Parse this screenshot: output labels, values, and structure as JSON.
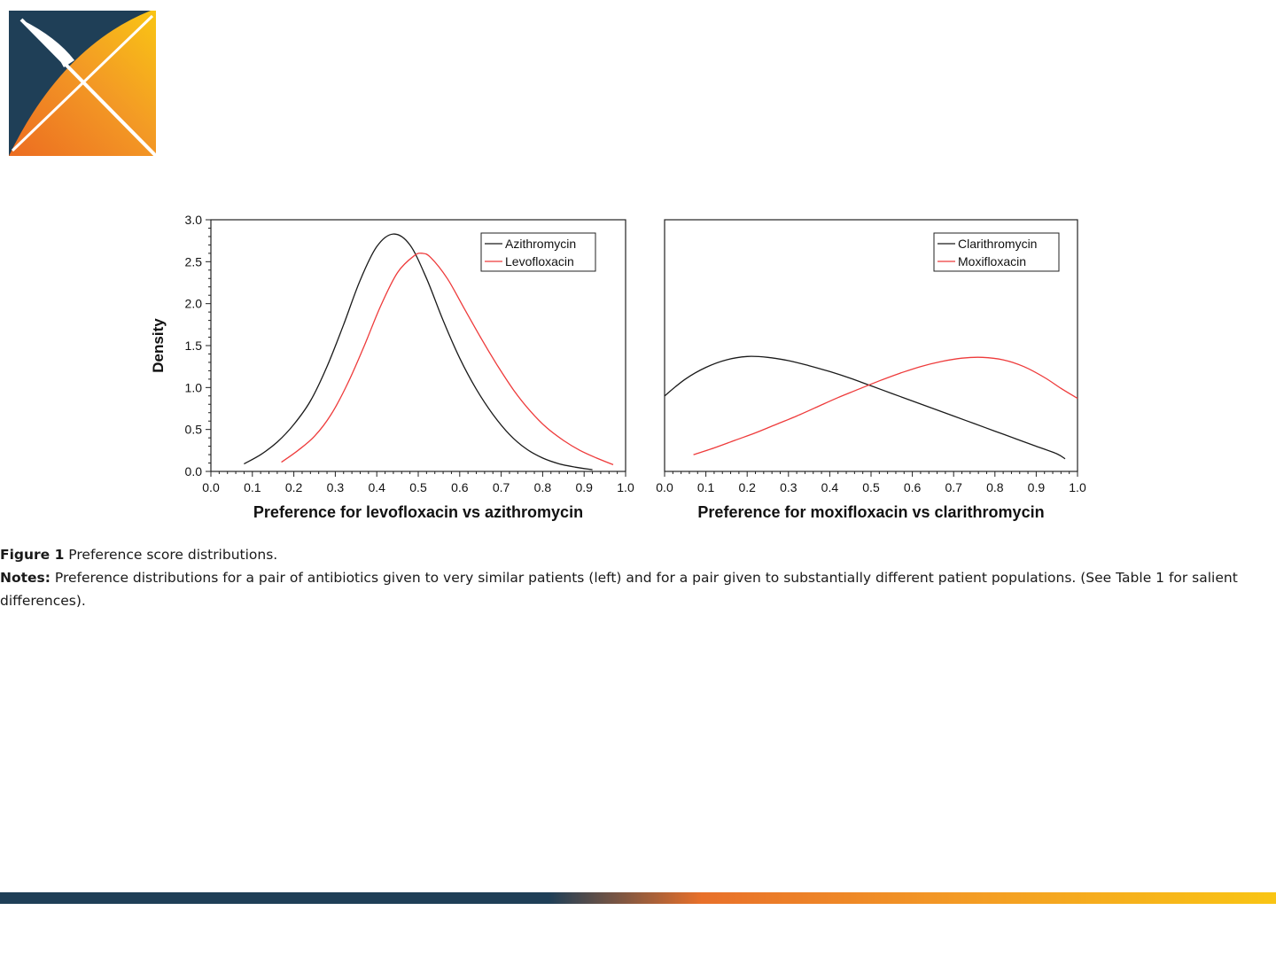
{
  "colors": {
    "navy": "#1f3f57",
    "orange": "#ee7d22",
    "yellow": "#f9c514",
    "series_black": "#1a1a1a",
    "series_red": "#ee3b3b"
  },
  "caption": {
    "figure_label": "Figure 1",
    "figure_text": " Preference score distributions.",
    "notes_label": "Notes:",
    "notes_text": " Preference distributions for a pair of antibiotics given to very similar patients (left) and for a pair given to substantially different patient populations. (See Table 1 for salient differences)."
  },
  "chart_data": [
    {
      "type": "line",
      "title": "",
      "xlabel": "Preference for levofloxacin vs azithromycin",
      "ylabel": "Density",
      "xlim": [
        0,
        1
      ],
      "ylim": [
        0,
        3
      ],
      "xticks": [
        "0.0",
        "0.1",
        "0.2",
        "0.3",
        "0.4",
        "0.5",
        "0.6",
        "0.7",
        "0.8",
        "0.9",
        "1.0"
      ],
      "yticks": [
        "0.0",
        "0.5",
        "1.0",
        "1.5",
        "2.0",
        "2.5",
        "3.0"
      ],
      "legend_position": "top-right",
      "series": [
        {
          "name": "Azithromycin",
          "color": "#1a1a1a",
          "x": [
            0.08,
            0.12,
            0.16,
            0.2,
            0.24,
            0.28,
            0.32,
            0.36,
            0.4,
            0.44,
            0.48,
            0.52,
            0.56,
            0.6,
            0.64,
            0.68,
            0.72,
            0.76,
            0.8,
            0.84,
            0.88,
            0.92
          ],
          "y": [
            0.09,
            0.2,
            0.35,
            0.56,
            0.84,
            1.25,
            1.75,
            2.28,
            2.68,
            2.83,
            2.7,
            2.3,
            1.8,
            1.35,
            0.98,
            0.68,
            0.44,
            0.27,
            0.16,
            0.09,
            0.05,
            0.02
          ]
        },
        {
          "name": "Levofloxacin",
          "color": "#ee3b3b",
          "x": [
            0.17,
            0.21,
            0.25,
            0.29,
            0.33,
            0.37,
            0.41,
            0.45,
            0.49,
            0.51,
            0.53,
            0.57,
            0.61,
            0.65,
            0.69,
            0.73,
            0.77,
            0.81,
            0.85,
            0.89,
            0.93,
            0.97
          ],
          "y": [
            0.11,
            0.25,
            0.42,
            0.68,
            1.05,
            1.5,
            1.98,
            2.37,
            2.57,
            2.6,
            2.55,
            2.3,
            1.95,
            1.6,
            1.27,
            0.97,
            0.72,
            0.52,
            0.37,
            0.25,
            0.16,
            0.08
          ]
        }
      ]
    },
    {
      "type": "line",
      "title": "",
      "xlabel": "Preference for moxifloxacin vs clarithromycin",
      "ylabel": "",
      "xlim": [
        0,
        1
      ],
      "ylim": [
        0,
        3
      ],
      "xticks": [
        "0.0",
        "0.1",
        "0.2",
        "0.3",
        "0.4",
        "0.5",
        "0.6",
        "0.7",
        "0.8",
        "0.9",
        "1.0"
      ],
      "legend_position": "top-right",
      "series": [
        {
          "name": "Clarithromycin",
          "color": "#1a1a1a",
          "x": [
            0.0,
            0.05,
            0.1,
            0.15,
            0.2,
            0.25,
            0.3,
            0.35,
            0.4,
            0.45,
            0.5,
            0.55,
            0.6,
            0.65,
            0.7,
            0.75,
            0.8,
            0.85,
            0.9,
            0.95,
            0.97
          ],
          "y": [
            0.9,
            1.1,
            1.24,
            1.33,
            1.37,
            1.36,
            1.32,
            1.26,
            1.19,
            1.11,
            1.02,
            0.93,
            0.84,
            0.75,
            0.66,
            0.57,
            0.48,
            0.39,
            0.3,
            0.21,
            0.15
          ]
        },
        {
          "name": "Moxifloxacin",
          "color": "#ee3b3b",
          "x": [
            0.07,
            0.12,
            0.17,
            0.22,
            0.27,
            0.32,
            0.37,
            0.42,
            0.47,
            0.52,
            0.57,
            0.62,
            0.67,
            0.72,
            0.77,
            0.82,
            0.87,
            0.92,
            0.96,
            1.0
          ],
          "y": [
            0.2,
            0.28,
            0.37,
            0.46,
            0.56,
            0.66,
            0.77,
            0.88,
            0.98,
            1.08,
            1.17,
            1.25,
            1.31,
            1.35,
            1.36,
            1.33,
            1.25,
            1.12,
            0.99,
            0.87
          ]
        }
      ]
    }
  ]
}
